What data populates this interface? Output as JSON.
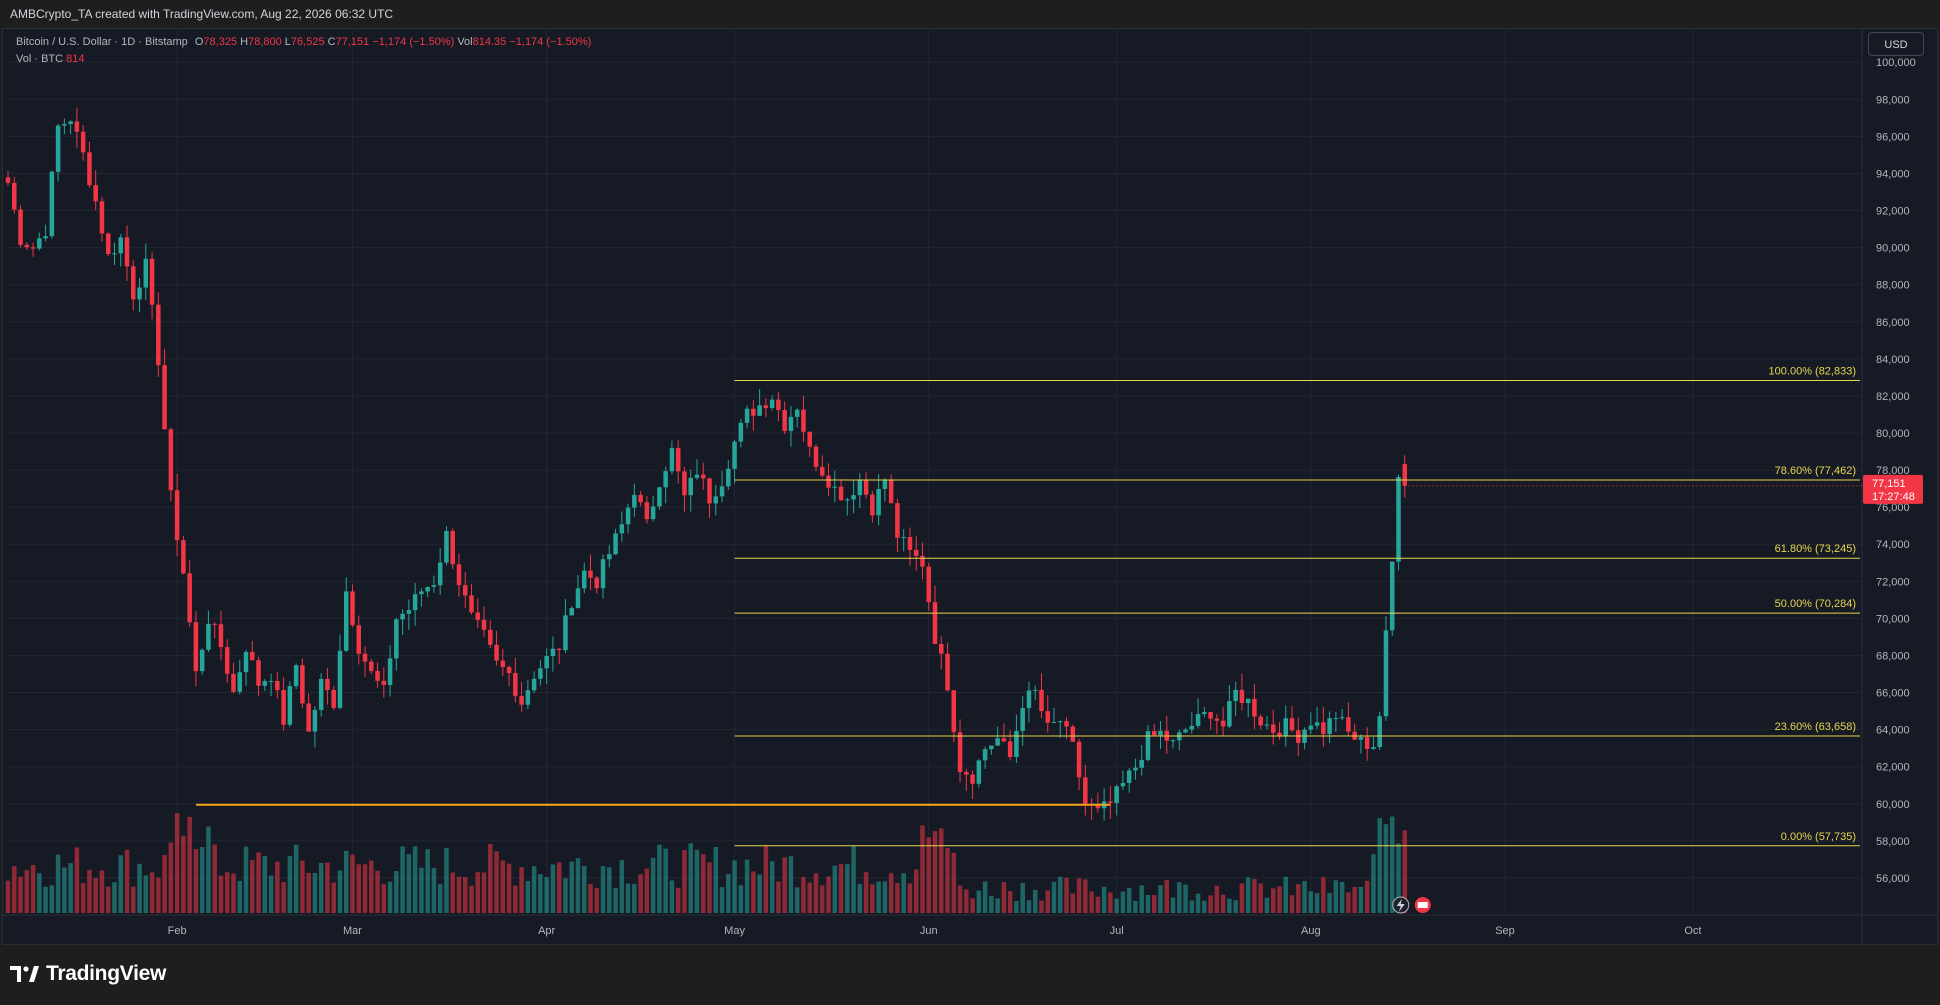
{
  "header": {
    "author_line": "AMBCrypto_TA created with TradingView.com, Aug 22, 2026 06:32 UTC"
  },
  "legend": {
    "symbol": "Bitcoin / U.S. Dollar · 1D · Bitstamp",
    "o_label": "O",
    "o_value": "78,325",
    "h_label": "H",
    "h_value": "78,800",
    "l_label": "L",
    "l_value": "76,525",
    "c_label": "C",
    "c_value": "77,151",
    "change": "−1,174 (−1.50%)",
    "vol_label": "Vol",
    "vol_value": "814.35",
    "vol_change": "−1,174 (−1.50%)",
    "vol_line_label": "Vol · BTC",
    "vol_line_value": "814"
  },
  "currency_button": "USD",
  "price_tag": {
    "price": "77,151",
    "countdown": "17:27:48",
    "color": "#f23645"
  },
  "brand": {
    "wordmark": "TradingView"
  },
  "colors": {
    "up": "#26a69a",
    "down": "#f23645",
    "fib": "#e8d44d",
    "support": "#f7a21b",
    "background": "#161a25"
  },
  "chart_data": {
    "type": "candlestick",
    "symbol": "Bitcoin / U.S. Dollar",
    "interval": "1D",
    "exchange": "Bitstamp",
    "y_ticks": [
      "56,000",
      "58,000",
      "60,000",
      "62,000",
      "64,000",
      "66,000",
      "68,000",
      "70,000",
      "72,000",
      "74,000",
      "76,000",
      "78,000",
      "80,000",
      "82,000",
      "84,000",
      "86,000",
      "88,000",
      "90,000",
      "92,000",
      "94,000",
      "96,000",
      "98,000",
      "100,000"
    ],
    "y_tick_values": [
      56000,
      58000,
      60000,
      62000,
      64000,
      66000,
      68000,
      70000,
      72000,
      74000,
      76000,
      78000,
      80000,
      82000,
      84000,
      86000,
      88000,
      90000,
      92000,
      94000,
      96000,
      98000,
      100000
    ],
    "ylim": [
      54000,
      101200
    ],
    "x_ticks": [
      {
        "label": "Feb",
        "day": 31
      },
      {
        "label": "Mar",
        "day": 59
      },
      {
        "label": "Apr",
        "day": 90
      },
      {
        "label": "May",
        "day": 120
      },
      {
        "label": "Jun",
        "day": 151
      },
      {
        "label": "Jul",
        "day": 181
      },
      {
        "label": "Aug",
        "day": 212
      },
      {
        "label": "Sep",
        "day": 243
      },
      {
        "label": "Oct",
        "day": 273
      }
    ],
    "xlim_days": [
      4,
      300
    ],
    "price_path": [
      [
        4,
        93500
      ],
      [
        6,
        90500
      ],
      [
        8,
        90000
      ],
      [
        10,
        91000
      ],
      [
        12,
        96500
      ],
      [
        14,
        97000
      ],
      [
        16,
        95000
      ],
      [
        18,
        92500
      ],
      [
        20,
        89500
      ],
      [
        22,
        90500
      ],
      [
        24,
        87500
      ],
      [
        26,
        89000
      ],
      [
        28,
        84000
      ],
      [
        30,
        76500
      ],
      [
        32,
        72500
      ],
      [
        34,
        67000
      ],
      [
        36,
        70000
      ],
      [
        38,
        68500
      ],
      [
        40,
        66000
      ],
      [
        42,
        68500
      ],
      [
        44,
        66500
      ],
      [
        46,
        67000
      ],
      [
        48,
        64500
      ],
      [
        50,
        67500
      ],
      [
        52,
        63800
      ],
      [
        54,
        66500
      ],
      [
        56,
        65500
      ],
      [
        58,
        71500
      ],
      [
        60,
        68500
      ],
      [
        62,
        67000
      ],
      [
        64,
        66000
      ],
      [
        66,
        70000
      ],
      [
        68,
        70500
      ],
      [
        70,
        71500
      ],
      [
        72,
        72000
      ],
      [
        74,
        74500
      ],
      [
        76,
        72000
      ],
      [
        78,
        70000
      ],
      [
        80,
        69000
      ],
      [
        82,
        67500
      ],
      [
        84,
        67000
      ],
      [
        86,
        65500
      ],
      [
        88,
        67000
      ],
      [
        90,
        67800
      ],
      [
        92,
        68500
      ],
      [
        94,
        71000
      ],
      [
        96,
        72500
      ],
      [
        98,
        72000
      ],
      [
        100,
        73500
      ],
      [
        102,
        75000
      ],
      [
        104,
        77000
      ],
      [
        106,
        75000
      ],
      [
        108,
        77500
      ],
      [
        110,
        79000
      ],
      [
        112,
        76500
      ],
      [
        114,
        78000
      ],
      [
        116,
        76500
      ],
      [
        118,
        77500
      ],
      [
        120,
        79500
      ],
      [
        122,
        81000
      ],
      [
        124,
        81500
      ],
      [
        126,
        82000
      ],
      [
        128,
        80500
      ],
      [
        130,
        81500
      ],
      [
        132,
        79000
      ],
      [
        134,
        78000
      ],
      [
        136,
        77000
      ],
      [
        138,
        76500
      ],
      [
        140,
        77500
      ],
      [
        142,
        76000
      ],
      [
        144,
        77500
      ],
      [
        146,
        74500
      ],
      [
        148,
        73500
      ],
      [
        150,
        73000
      ],
      [
        152,
        69000
      ],
      [
        154,
        66500
      ],
      [
        156,
        62000
      ],
      [
        158,
        61500
      ],
      [
        160,
        63000
      ],
      [
        162,
        63500
      ],
      [
        164,
        62500
      ],
      [
        166,
        65500
      ],
      [
        168,
        66000
      ],
      [
        170,
        64000
      ],
      [
        172,
        64500
      ],
      [
        174,
        63000
      ],
      [
        176,
        60000
      ],
      [
        178,
        59500
      ],
      [
        180,
        60000
      ],
      [
        182,
        61000
      ],
      [
        184,
        62000
      ],
      [
        186,
        63500
      ],
      [
        188,
        63800
      ],
      [
        190,
        63200
      ],
      [
        192,
        64000
      ],
      [
        194,
        64500
      ],
      [
        196,
        65000
      ],
      [
        198,
        64200
      ],
      [
        200,
        66000
      ],
      [
        202,
        65500
      ],
      [
        204,
        64500
      ],
      [
        206,
        64000
      ],
      [
        208,
        64200
      ],
      [
        210,
        63700
      ],
      [
        212,
        64500
      ],
      [
        214,
        64000
      ],
      [
        216,
        64800
      ],
      [
        218,
        63800
      ],
      [
        220,
        63300
      ],
      [
        222,
        63200
      ],
      [
        223,
        64800
      ],
      [
        224,
        69000
      ],
      [
        225,
        73000
      ],
      [
        226,
        78000
      ],
      [
        227,
        77151
      ]
    ],
    "last_close": 77151,
    "fibonacci": {
      "start_day": 120,
      "levels": [
        {
          "label": "100.00% (82,833)",
          "ratio": 1.0,
          "price": 82833
        },
        {
          "label": "78.60% (77,462)",
          "ratio": 0.786,
          "price": 77462
        },
        {
          "label": "61.80% (73,245)",
          "ratio": 0.618,
          "price": 73245
        },
        {
          "label": "50.00% (70,284)",
          "ratio": 0.5,
          "price": 70284
        },
        {
          "label": "23.60% (63,658)",
          "ratio": 0.236,
          "price": 63658
        },
        {
          "label": "0.00% (57,735)",
          "ratio": 0.0,
          "price": 57735
        }
      ]
    },
    "support_line": {
      "from_day": 34,
      "to_day": 180,
      "price": 59950
    },
    "volume": {
      "max_btc": 5000
    }
  }
}
